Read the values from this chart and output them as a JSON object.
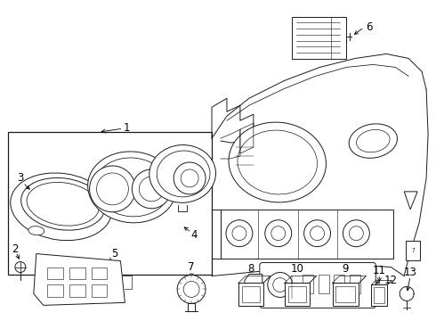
{
  "bg_color": "#ffffff",
  "line_color": "#1a1a1a",
  "fig_width": 4.9,
  "fig_height": 3.6,
  "dpi": 100,
  "font_size": 8.5
}
